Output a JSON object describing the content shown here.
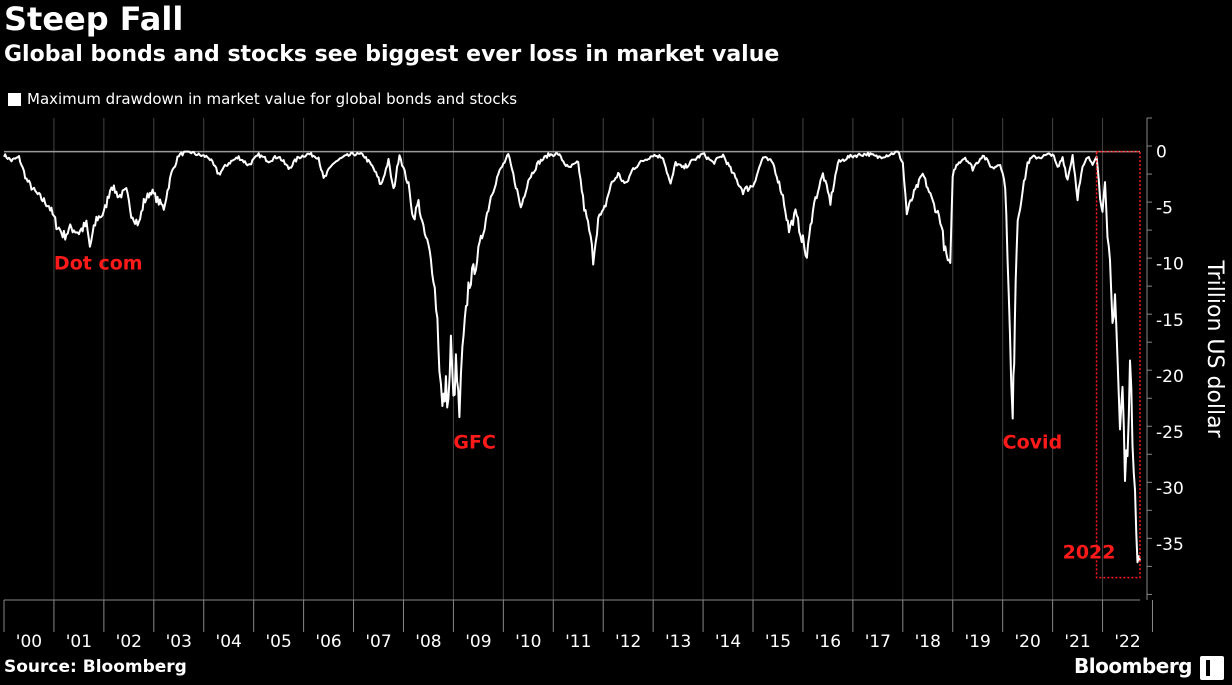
{
  "title": "Steep Fall",
  "subtitle": "Global bonds and stocks see biggest ever loss in market value",
  "source": "Source: Bloomberg",
  "brand": "Bloomberg",
  "colors": {
    "background": "#000000",
    "line": "#ffffff",
    "annotation": "#ff1a1a",
    "grid": "#444444"
  },
  "chart_data": {
    "type": "line",
    "title": "Steep Fall",
    "subtitle": "Global bonds and stocks see biggest ever loss in market value",
    "xlabel": "",
    "ylabel": "Trillion US dollar",
    "y_axis_side": "right",
    "ylim": [
      -40,
      3
    ],
    "xlim": [
      2000,
      2022.75
    ],
    "yticks": [
      0,
      -5,
      -10,
      -15,
      -20,
      -25,
      -30,
      -35
    ],
    "ytick_labels": [
      "0",
      "-5",
      "-10",
      "-15",
      "-20",
      "-25",
      "-30",
      "-35"
    ],
    "xtick_labels": [
      "'00",
      "'01",
      "'02",
      "'03",
      "'04",
      "'05",
      "'06",
      "'07",
      "'08",
      "'09",
      "'10",
      "'11",
      "'12",
      "'13",
      "'14",
      "'15",
      "'16",
      "'17",
      "'18",
      "'19",
      "'20",
      "'21",
      "'22"
    ],
    "grid": "vertical",
    "legend_placement": "top-left",
    "series": [
      {
        "name": "Maximum drawdown in market value for global bonds and stocks",
        "x": [
          2000.0,
          2000.15,
          2000.3,
          2000.45,
          2000.6,
          2000.75,
          2000.9,
          2001.05,
          2001.2,
          2001.35,
          2001.5,
          2001.65,
          2001.72,
          2001.85,
          2002.0,
          2002.15,
          2002.3,
          2002.45,
          2002.55,
          2002.7,
          2002.8,
          2002.95,
          2003.1,
          2003.2,
          2003.35,
          2003.5,
          2003.7,
          2003.9,
          2004.1,
          2004.3,
          2004.5,
          2004.7,
          2004.9,
          2005.1,
          2005.3,
          2005.5,
          2005.7,
          2005.9,
          2006.1,
          2006.3,
          2006.4,
          2006.6,
          2006.8,
          2007.0,
          2007.2,
          2007.4,
          2007.55,
          2007.7,
          2007.8,
          2007.92,
          2008.0,
          2008.1,
          2008.2,
          2008.3,
          2008.4,
          2008.5,
          2008.6,
          2008.68,
          2008.72,
          2008.78,
          2008.85,
          2008.9,
          2008.95,
          2009.0,
          2009.05,
          2009.12,
          2009.18,
          2009.3,
          2009.45,
          2009.6,
          2009.75,
          2009.9,
          2010.1,
          2010.25,
          2010.35,
          2010.5,
          2010.7,
          2010.9,
          2011.1,
          2011.3,
          2011.5,
          2011.62,
          2011.72,
          2011.8,
          2011.9,
          2012.0,
          2012.15,
          2012.3,
          2012.45,
          2012.6,
          2012.8,
          2013.0,
          2013.2,
          2013.35,
          2013.45,
          2013.6,
          2013.8,
          2014.0,
          2014.2,
          2014.4,
          2014.6,
          2014.8,
          2015.0,
          2015.2,
          2015.4,
          2015.6,
          2015.72,
          2015.85,
          2016.0,
          2016.08,
          2016.2,
          2016.4,
          2016.55,
          2016.7,
          2016.9,
          2017.1,
          2017.3,
          2017.5,
          2017.7,
          2017.9,
          2018.0,
          2018.08,
          2018.2,
          2018.4,
          2018.6,
          2018.75,
          2018.85,
          2018.95,
          2019.0,
          2019.1,
          2019.25,
          2019.4,
          2019.6,
          2019.8,
          2019.95,
          2020.05,
          2020.12,
          2020.17,
          2020.2,
          2020.23,
          2020.26,
          2020.3,
          2020.4,
          2020.5,
          2020.6,
          2020.75,
          2020.9,
          2021.0,
          2021.1,
          2021.2,
          2021.3,
          2021.4,
          2021.5,
          2021.6,
          2021.7,
          2021.8,
          2021.88,
          2021.95,
          2022.0,
          2022.05,
          2022.1,
          2022.15,
          2022.2,
          2022.25,
          2022.3,
          2022.35,
          2022.4,
          2022.45,
          2022.5,
          2022.55,
          2022.6,
          2022.65,
          2022.7,
          2022.75
        ],
        "values": [
          -0.3,
          -0.8,
          -0.5,
          -2.5,
          -3.5,
          -4.2,
          -4.8,
          -6.5,
          -7.5,
          -6.8,
          -7.2,
          -6.5,
          -8.5,
          -6.0,
          -5.5,
          -3.0,
          -4.0,
          -3.5,
          -5.5,
          -6.5,
          -4.5,
          -3.5,
          -4.5,
          -5.0,
          -2.0,
          -0.3,
          0.0,
          -0.3,
          -0.5,
          -2.0,
          -1.0,
          -0.5,
          -1.2,
          -0.3,
          -0.8,
          -0.4,
          -1.5,
          -0.5,
          -0.2,
          -0.5,
          -2.5,
          -1.0,
          -0.5,
          -0.2,
          -0.3,
          -1.5,
          -3.0,
          -0.8,
          -3.5,
          -0.2,
          -1.5,
          -3.0,
          -6.0,
          -4.5,
          -7.0,
          -8.5,
          -11.0,
          -15.0,
          -19.0,
          -23.0,
          -21.0,
          -22.5,
          -17.0,
          -22.5,
          -19.0,
          -23.5,
          -18.0,
          -12.0,
          -10.0,
          -7.0,
          -4.0,
          -2.0,
          -0.3,
          -3.0,
          -5.0,
          -2.5,
          -1.0,
          -0.3,
          -0.2,
          -1.5,
          -1.0,
          -5.0,
          -7.0,
          -9.5,
          -6.0,
          -5.5,
          -3.0,
          -2.0,
          -3.0,
          -1.5,
          -0.8,
          -0.3,
          -0.5,
          -3.0,
          -1.0,
          -1.5,
          -0.8,
          -0.2,
          -1.0,
          -0.3,
          -2.0,
          -3.5,
          -3.0,
          -0.5,
          -1.0,
          -4.0,
          -7.0,
          -5.5,
          -8.0,
          -9.5,
          -5.0,
          -2.0,
          -4.5,
          -1.0,
          -0.5,
          -0.3,
          -0.2,
          -0.5,
          -0.3,
          0.0,
          -1.0,
          -5.5,
          -4.0,
          -2.0,
          -4.5,
          -6.0,
          -9.0,
          -10.5,
          -2.0,
          -1.0,
          -0.5,
          -1.5,
          -0.3,
          -1.5,
          -1.0,
          -3.0,
          -12.0,
          -21.0,
          -24.0,
          -18.0,
          -11.0,
          -6.0,
          -3.5,
          -1.0,
          -0.5,
          -0.5,
          -0.3,
          -0.2,
          -1.5,
          -0.5,
          -2.5,
          -0.3,
          -4.0,
          -1.5,
          -0.5,
          -1.0,
          -0.3,
          -4.0,
          -5.0,
          -3.0,
          -8.0,
          -10.0,
          -15.5,
          -12.5,
          -18.5,
          -25.0,
          -21.0,
          -29.0,
          -26.0,
          -19.0,
          -25.5,
          -29.5,
          -36.5,
          -36.5
        ]
      }
    ],
    "annotations": [
      {
        "text": "Dot com",
        "x": 2001.0,
        "y": -10.5
      },
      {
        "text": "GFC",
        "x": 2009.0,
        "y": -26.5
      },
      {
        "text": "Covid",
        "x": 2020.0,
        "y": -26.5
      },
      {
        "text": "2022",
        "x": 2021.2,
        "y": -36.3
      }
    ],
    "highlight_region": {
      "label": "2022",
      "x_start": 2021.88,
      "x_end": 2022.75,
      "y_top": 0,
      "y_bottom": -38
    }
  }
}
